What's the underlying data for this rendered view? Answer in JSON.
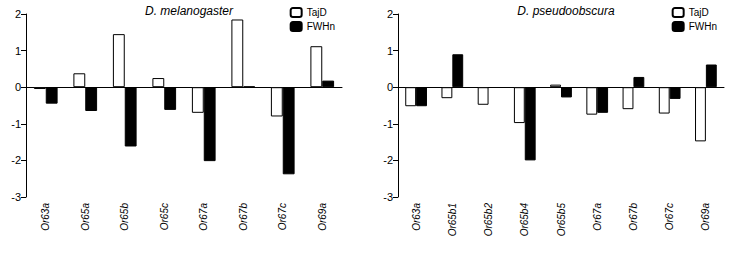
{
  "chart_data": [
    {
      "type": "bar",
      "title": "D. melanogaster",
      "categories": [
        "Or63a",
        "Or65a",
        "Or65b",
        "Or65c",
        "Or67a",
        "Or67b",
        "Or67c",
        "Or69a"
      ],
      "series": [
        {
          "name": "TajD",
          "color": "#ffffff",
          "values": [
            -0.05,
            0.38,
            1.45,
            0.25,
            -0.7,
            1.85,
            -0.8,
            1.12
          ]
        },
        {
          "name": "FWHn",
          "color": "#000000",
          "values": [
            -0.45,
            -0.65,
            -1.62,
            -0.62,
            -2.02,
            0.02,
            -2.38,
            0.18
          ]
        }
      ],
      "ylim": [
        -3,
        2
      ],
      "yticks": [
        -3,
        -2,
        -1,
        0,
        1,
        2
      ],
      "grid": false,
      "legend": "top-right"
    },
    {
      "type": "bar",
      "title": "D. pseudoobscura",
      "categories": [
        "Or63a",
        "Or65b1",
        "Or65b2",
        "Or65b4",
        "Or65b5",
        "Or67a",
        "Or67b",
        "Or67c",
        "Or69a"
      ],
      "series": [
        {
          "name": "TajD",
          "color": "#ffffff",
          "values": [
            -0.52,
            -0.3,
            -0.48,
            -0.98,
            0.07,
            -0.75,
            -0.6,
            -0.72,
            -1.48
          ]
        },
        {
          "name": "FWHn",
          "color": "#000000",
          "values": [
            -0.52,
            0.9,
            null,
            -2.0,
            -0.28,
            -0.7,
            0.28,
            -0.32,
            0.62
          ]
        }
      ],
      "ylim": [
        -3,
        2
      ],
      "yticks": [
        -3,
        -2,
        -1,
        0,
        1,
        2
      ],
      "grid": false,
      "legend": "top-right"
    }
  ]
}
